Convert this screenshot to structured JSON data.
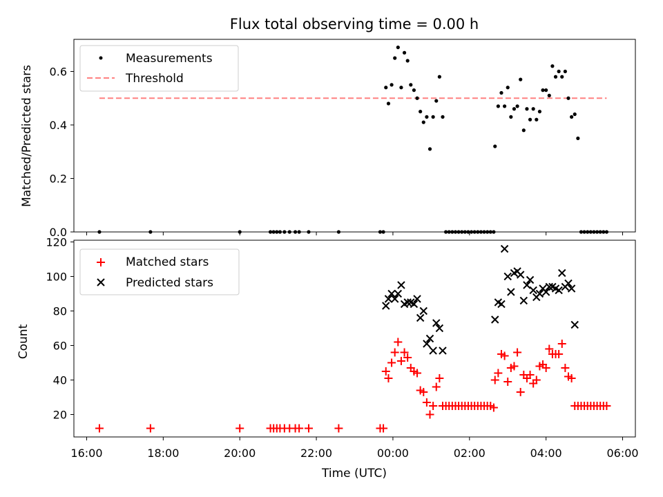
{
  "chart_data": {
    "title": "Flux total observing time = 0.00 h",
    "xlabel": "Time (UTC)",
    "xticks": [
      "16:00",
      "18:00",
      "20:00",
      "22:00",
      "00:00",
      "02:00",
      "04:00",
      "06:00"
    ],
    "top": {
      "type": "scatter",
      "ylabel": "Matched/Predicted stars",
      "ylim": [
        0,
        0.72
      ],
      "yticks": [
        "0.0",
        "0.2",
        "0.4",
        "0.6"
      ],
      "legend": [
        {
          "label": "Measurements",
          "color": "#000000"
        },
        {
          "label": "Threshold",
          "color": "#ff8080"
        }
      ],
      "threshold": {
        "x": [
          "16:20",
          "05:35"
        ],
        "y": 0.5
      },
      "measurements": [
        [
          "16:20",
          0
        ],
        [
          "17:40",
          0
        ],
        [
          "20:00",
          0
        ],
        [
          "20:48",
          0
        ],
        [
          "20:53",
          0
        ],
        [
          "20:58",
          0
        ],
        [
          "21:03",
          0
        ],
        [
          "21:10",
          0
        ],
        [
          "21:18",
          0
        ],
        [
          "21:27",
          0
        ],
        [
          "21:33",
          0
        ],
        [
          "21:48",
          0
        ],
        [
          "22:35",
          0
        ],
        [
          "23:40",
          0
        ],
        [
          "23:45",
          0
        ],
        [
          "23:49",
          0.54
        ],
        [
          "23:53",
          0.48
        ],
        [
          "23:58",
          0.55
        ],
        [
          "00:03",
          0.65
        ],
        [
          "00:08",
          0.69
        ],
        [
          "00:13",
          0.54
        ],
        [
          "00:18",
          0.67
        ],
        [
          "00:23",
          0.64
        ],
        [
          "00:28",
          0.55
        ],
        [
          "00:33",
          0.53
        ],
        [
          "00:38",
          0.5
        ],
        [
          "00:43",
          0.45
        ],
        [
          "00:48",
          0.41
        ],
        [
          "00:53",
          0.43
        ],
        [
          "00:58",
          0.31
        ],
        [
          "01:03",
          0.43
        ],
        [
          "01:08",
          0.49
        ],
        [
          "01:13",
          0.58
        ],
        [
          "01:18",
          0.43
        ],
        [
          "01:23",
          0
        ],
        [
          "01:28",
          0
        ],
        [
          "01:33",
          0
        ],
        [
          "01:38",
          0
        ],
        [
          "01:43",
          0
        ],
        [
          "01:48",
          0
        ],
        [
          "01:53",
          0
        ],
        [
          "01:58",
          0
        ],
        [
          "02:03",
          0
        ],
        [
          "02:08",
          0
        ],
        [
          "02:13",
          0
        ],
        [
          "02:18",
          0
        ],
        [
          "02:23",
          0
        ],
        [
          "02:28",
          0
        ],
        [
          "02:33",
          0
        ],
        [
          "02:38",
          0
        ],
        [
          "02:40",
          0.32
        ],
        [
          "02:45",
          0.47
        ],
        [
          "02:50",
          0.52
        ],
        [
          "02:55",
          0.47
        ],
        [
          "03:00",
          0.54
        ],
        [
          "03:05",
          0.43
        ],
        [
          "03:10",
          0.46
        ],
        [
          "03:15",
          0.47
        ],
        [
          "03:20",
          0.57
        ],
        [
          "03:25",
          0.38
        ],
        [
          "03:30",
          0.46
        ],
        [
          "03:35",
          0.42
        ],
        [
          "03:40",
          0.46
        ],
        [
          "03:45",
          0.42
        ],
        [
          "03:50",
          0.45
        ],
        [
          "03:55",
          0.53
        ],
        [
          "04:00",
          0.53
        ],
        [
          "04:05",
          0.51
        ],
        [
          "04:10",
          0.62
        ],
        [
          "04:15",
          0.58
        ],
        [
          "04:20",
          0.6
        ],
        [
          "04:25",
          0.58
        ],
        [
          "04:30",
          0.6
        ],
        [
          "04:35",
          0.5
        ],
        [
          "04:40",
          0.43
        ],
        [
          "04:45",
          0.44
        ],
        [
          "04:50",
          0.35
        ],
        [
          "04:55",
          0
        ],
        [
          "05:00",
          0
        ],
        [
          "05:05",
          0
        ],
        [
          "05:10",
          0
        ],
        [
          "05:15",
          0
        ],
        [
          "05:20",
          0
        ],
        [
          "05:25",
          0
        ],
        [
          "05:30",
          0
        ],
        [
          "05:35",
          0
        ]
      ]
    },
    "bottom": {
      "type": "scatter",
      "ylabel": "Count",
      "ylim": [
        7,
        121
      ],
      "yticks": [
        "20",
        "40",
        "60",
        "80",
        "100",
        "120"
      ],
      "legend": [
        {
          "label": "Matched stars",
          "color": "#ff0000",
          "marker": "+"
        },
        {
          "label": "Predicted stars",
          "color": "#000000",
          "marker": "x"
        }
      ],
      "matched": [
        [
          "16:20",
          12
        ],
        [
          "17:40",
          12
        ],
        [
          "20:00",
          12
        ],
        [
          "20:48",
          12
        ],
        [
          "20:53",
          12
        ],
        [
          "20:58",
          12
        ],
        [
          "21:03",
          12
        ],
        [
          "21:10",
          12
        ],
        [
          "21:18",
          12
        ],
        [
          "21:27",
          12
        ],
        [
          "21:33",
          12
        ],
        [
          "21:48",
          12
        ],
        [
          "22:35",
          12
        ],
        [
          "23:40",
          12
        ],
        [
          "23:45",
          12
        ],
        [
          "23:49",
          45
        ],
        [
          "23:53",
          41
        ],
        [
          "23:58",
          50
        ],
        [
          "00:03",
          56
        ],
        [
          "00:08",
          62
        ],
        [
          "00:13",
          51
        ],
        [
          "00:18",
          56
        ],
        [
          "00:23",
          53
        ],
        [
          "00:28",
          47
        ],
        [
          "00:33",
          45
        ],
        [
          "00:38",
          44
        ],
        [
          "00:43",
          34
        ],
        [
          "00:48",
          33
        ],
        [
          "00:53",
          27
        ],
        [
          "00:58",
          20
        ],
        [
          "01:03",
          25
        ],
        [
          "01:08",
          36
        ],
        [
          "01:13",
          41
        ],
        [
          "01:18",
          25
        ],
        [
          "01:23",
          25
        ],
        [
          "01:28",
          25
        ],
        [
          "01:33",
          25
        ],
        [
          "01:38",
          25
        ],
        [
          "01:43",
          25
        ],
        [
          "01:48",
          25
        ],
        [
          "01:53",
          25
        ],
        [
          "01:58",
          25
        ],
        [
          "02:03",
          25
        ],
        [
          "02:08",
          25
        ],
        [
          "02:13",
          25
        ],
        [
          "02:18",
          25
        ],
        [
          "02:23",
          25
        ],
        [
          "02:28",
          25
        ],
        [
          "02:33",
          25
        ],
        [
          "02:38",
          24
        ],
        [
          "02:40",
          40
        ],
        [
          "02:45",
          44
        ],
        [
          "02:50",
          55
        ],
        [
          "02:55",
          54
        ],
        [
          "03:00",
          39
        ],
        [
          "03:05",
          47
        ],
        [
          "03:10",
          48
        ],
        [
          "03:15",
          56
        ],
        [
          "03:20",
          33
        ],
        [
          "03:25",
          43
        ],
        [
          "03:30",
          41
        ],
        [
          "03:35",
          43
        ],
        [
          "03:40",
          38
        ],
        [
          "03:45",
          40
        ],
        [
          "03:50",
          48
        ],
        [
          "03:55",
          49
        ],
        [
          "04:00",
          47
        ],
        [
          "04:05",
          58
        ],
        [
          "04:10",
          55
        ],
        [
          "04:15",
          55
        ],
        [
          "04:20",
          55
        ],
        [
          "04:25",
          61
        ],
        [
          "04:30",
          47
        ],
        [
          "04:35",
          42
        ],
        [
          "04:40",
          41
        ],
        [
          "04:45",
          25
        ],
        [
          "04:50",
          25
        ],
        [
          "04:55",
          25
        ],
        [
          "05:00",
          25
        ],
        [
          "05:05",
          25
        ],
        [
          "05:10",
          25
        ],
        [
          "05:15",
          25
        ],
        [
          "05:20",
          25
        ],
        [
          "05:25",
          25
        ],
        [
          "05:30",
          25
        ],
        [
          "05:35",
          25
        ]
      ],
      "predicted": [
        [
          "23:49",
          83
        ],
        [
          "23:53",
          87
        ],
        [
          "23:58",
          90
        ],
        [
          "00:03",
          87
        ],
        [
          "00:08",
          90
        ],
        [
          "00:13",
          95
        ],
        [
          "00:18",
          84
        ],
        [
          "00:23",
          85
        ],
        [
          "00:28",
          85
        ],
        [
          "00:33",
          84
        ],
        [
          "00:38",
          87
        ],
        [
          "00:43",
          76
        ],
        [
          "00:48",
          80
        ],
        [
          "00:53",
          61
        ],
        [
          "00:58",
          64
        ],
        [
          "01:03",
          57
        ],
        [
          "01:08",
          73
        ],
        [
          "01:13",
          70
        ],
        [
          "01:18",
          57
        ],
        [
          "02:40",
          75
        ],
        [
          "02:45",
          85
        ],
        [
          "02:50",
          84
        ],
        [
          "02:55",
          116
        ],
        [
          "03:00",
          100
        ],
        [
          "03:05",
          91
        ],
        [
          "03:10",
          102
        ],
        [
          "03:15",
          103
        ],
        [
          "03:20",
          101
        ],
        [
          "03:25",
          86
        ],
        [
          "03:30",
          95
        ],
        [
          "03:35",
          98
        ],
        [
          "03:40",
          92
        ],
        [
          "03:45",
          88
        ],
        [
          "03:50",
          90
        ],
        [
          "03:55",
          93
        ],
        [
          "04:00",
          91
        ],
        [
          "04:05",
          94
        ],
        [
          "04:10",
          94
        ],
        [
          "04:15",
          93
        ],
        [
          "04:20",
          92
        ],
        [
          "04:25",
          102
        ],
        [
          "04:30",
          94
        ],
        [
          "04:35",
          96
        ],
        [
          "04:40",
          93
        ],
        [
          "04:45",
          72
        ]
      ]
    }
  }
}
